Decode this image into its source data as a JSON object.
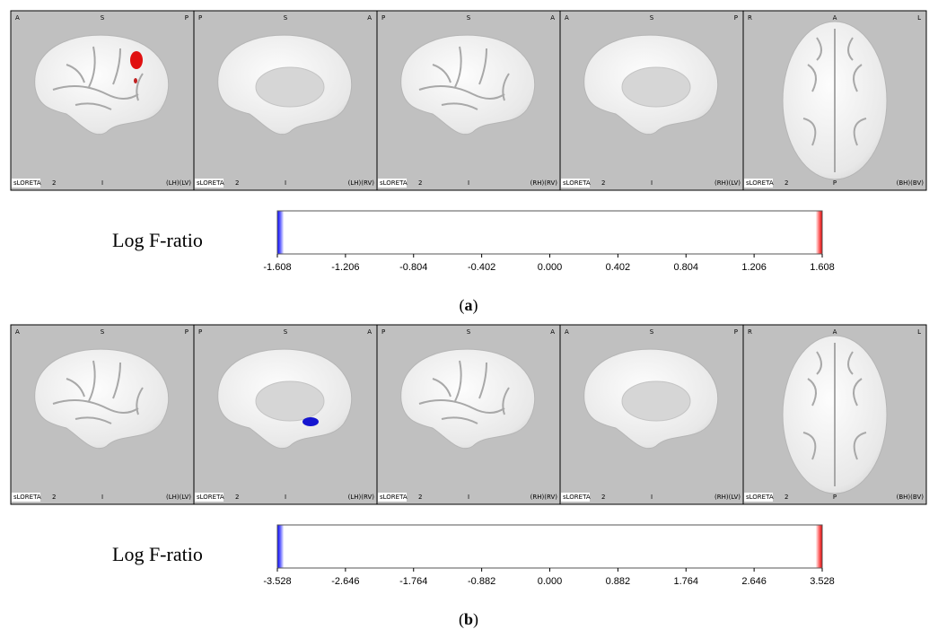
{
  "panels": [
    {
      "views": [
        {
          "top": [
            "A",
            "S",
            "P"
          ],
          "bottom": [
            "sLORETA",
            "2",
            "I",
            "(LH)(LV)"
          ]
        },
        {
          "top": [
            "P",
            "S",
            "A"
          ],
          "bottom": [
            "sLORETA",
            "2",
            "I",
            "(LH)(RV)"
          ]
        },
        {
          "top": [
            "P",
            "S",
            "A"
          ],
          "bottom": [
            "sLORETA",
            "2",
            "I",
            "(RH)(RV)"
          ]
        },
        {
          "top": [
            "A",
            "S",
            "P"
          ],
          "bottom": [
            "sLORETA",
            "2",
            "I",
            "(RH)(LV)"
          ]
        },
        {
          "top": [
            "R",
            "A",
            "L"
          ],
          "bottom": [
            "sLORETA",
            "2",
            "P",
            "(BH)(BV)"
          ]
        }
      ],
      "colorbar": {
        "label": "Log F-ratio",
        "ticks": [
          "-1.608",
          "-1.206",
          "-0.804",
          "-0.402",
          "0.000",
          "0.402",
          "0.804",
          "1.206",
          "1.608"
        ]
      },
      "caption": {
        "open": "(",
        "letter": "a",
        "close": ")"
      }
    },
    {
      "views": [
        {
          "top": [
            "A",
            "S",
            "P"
          ],
          "bottom": [
            "sLORETA",
            "2",
            "I",
            "(LH)(LV)"
          ]
        },
        {
          "top": [
            "P",
            "S",
            "A"
          ],
          "bottom": [
            "sLORETA",
            "2",
            "I",
            "(LH)(RV)"
          ]
        },
        {
          "top": [
            "P",
            "S",
            "A"
          ],
          "bottom": [
            "sLORETA",
            "2",
            "I",
            "(RH)(RV)"
          ]
        },
        {
          "top": [
            "A",
            "S",
            "P"
          ],
          "bottom": [
            "sLORETA",
            "2",
            "I",
            "(RH)(LV)"
          ]
        },
        {
          "top": [
            "R",
            "A",
            "L"
          ],
          "bottom": [
            "sLORETA",
            "2",
            "P",
            "(BH)(BV)"
          ]
        }
      ],
      "colorbar": {
        "label": "Log F-ratio",
        "ticks": [
          "-3.528",
          "-2.646",
          "-1.764",
          "-0.882",
          "0.000",
          "0.882",
          "1.764",
          "2.646",
          "3.528"
        ]
      },
      "caption": {
        "open": "(",
        "letter": "b",
        "close": ")"
      }
    }
  ]
}
